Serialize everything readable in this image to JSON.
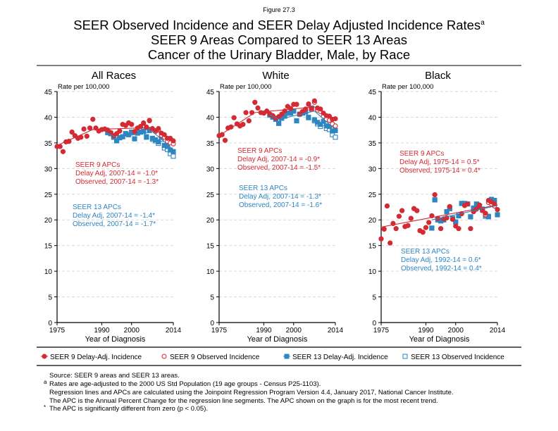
{
  "figure_label": "Figure 27.3",
  "title_line1": "SEER Observed Incidence and SEER Delay Adjusted Incidence Rates",
  "title_sup": "a",
  "title_line2": "SEER 9 Areas Compared to SEER 13 Areas",
  "title_line3": "Cancer of the Urinary Bladder, Male, by Race",
  "colors": {
    "seer9": "#d42a33",
    "seer13": "#2e86c1",
    "grid": "#d9d9d9"
  },
  "legend": [
    {
      "label": "SEER 9 Delay-Adj. Incidence",
      "marker": "filled-circle",
      "color": "#d42a33"
    },
    {
      "label": "SEER 9 Observed Incidence",
      "marker": "open-circle",
      "color": "#d42a33"
    },
    {
      "label": "SEER 13 Delay-Adj. Incidence",
      "marker": "filled-square",
      "color": "#2e86c1"
    },
    {
      "label": "SEER 13 Observed Incidence",
      "marker": "open-square",
      "color": "#2e86c1"
    }
  ],
  "footnotes": {
    "source": "Source: SEER 9 areas and SEER 13 areas.",
    "a_mark": "a",
    "a": "Rates are age-adjusted to the 2000 US Std Population (19 age groups - Census P25-1103).",
    "regression": "Regression lines and APCs are calculated using the Joinpoint Regression Program Version 4.4, January 2017, National Cancer Institute.",
    "apc": "The APC is the Annual Percent Change for the regression line segments. The APC shown on the graph is for the most recent trend.",
    "star_mark": "*",
    "star": "The APC is significantly different from zero (p < 0.05)."
  },
  "chart_data": [
    {
      "type": "scatter",
      "title": "All Races",
      "ylabel": "Rate per 100,000",
      "xlabel": "Year of Diagnosis",
      "xlim": [
        1975,
        2014
      ],
      "ylim": [
        0,
        45
      ],
      "xticks": [
        "1975",
        "1990",
        "2000",
        "2014"
      ],
      "yticks": [
        "0",
        "5",
        "10",
        "15",
        "20",
        "25",
        "30",
        "35",
        "40",
        "45"
      ],
      "grid": true,
      "seer9_years": [
        1975,
        2014
      ],
      "seer13_years": [
        1992,
        2014
      ],
      "seer9_delay": [
        34.3,
        34.3,
        33.3,
        35.2,
        35.3,
        37.1,
        36.4,
        35.9,
        36.1,
        37.7,
        36.3,
        37.9,
        39.6,
        37.9,
        37.3,
        37.6,
        37.7,
        37.5,
        37.0,
        36.4,
        36.8,
        37.3,
        38.6,
        38.4,
        38.9,
        38.6,
        37.2,
        37.9,
        38.2,
        38.9,
        38.1,
        39.4,
        37.8,
        37.4,
        37.8,
        36.9,
        36.6,
        35.9,
        35.9,
        35.4
      ],
      "seer9_observed": [
        34.3,
        34.3,
        33.3,
        35.2,
        35.3,
        37.1,
        36.4,
        35.9,
        36.1,
        37.7,
        36.3,
        37.9,
        39.6,
        37.9,
        37.3,
        37.6,
        37.7,
        37.5,
        37.0,
        36.4,
        36.8,
        37.3,
        38.6,
        38.4,
        38.9,
        38.6,
        37.2,
        37.9,
        38.2,
        38.8,
        38.0,
        39.3,
        37.6,
        37.2,
        37.5,
        36.5,
        36.1,
        35.3,
        35.0,
        34.8
      ],
      "seer13_delay": [
        37.0,
        36.8,
        36.1,
        35.4,
        36.0,
        36.2,
        36.8,
        36.6,
        37.1,
        35.8,
        36.9,
        37.1,
        37.3,
        36.2,
        37.6,
        35.9,
        35.6,
        35.2,
        36.1,
        34.5,
        34.3,
        33.6,
        33.3
      ],
      "seer13_observed": [
        37.0,
        36.8,
        36.1,
        35.4,
        36.0,
        36.2,
        36.8,
        36.6,
        37.1,
        35.8,
        36.9,
        37.1,
        37.2,
        36.1,
        37.4,
        35.7,
        35.4,
        34.9,
        35.7,
        34.0,
        33.7,
        32.9,
        32.4
      ],
      "seer9_trend": [
        [
          1975,
          34.5
        ],
        [
          1987,
          37.6
        ],
        [
          2007,
          38.0
        ],
        [
          2014,
          35.5
        ]
      ],
      "seer13_trend": [
        [
          1992,
          36.9
        ],
        [
          1995,
          36.0
        ],
        [
          2007,
          37.2
        ],
        [
          2014,
          33.7
        ]
      ],
      "seer9_apc": [
        "SEER 9 APCs",
        "Delay Adj, 2007-14 = -1.0*",
        "Observed, 2007-14 = -1.3*"
      ],
      "seer13_apc": [
        "SEER 13 APCs",
        "Delay Adj, 2007-14 = -1.4*",
        "Observed, 2007-14 = -1.7*"
      ]
    },
    {
      "type": "scatter",
      "title": "White",
      "ylabel": "Rate per 100,000",
      "xlabel": "Year of Diagnosis",
      "xlim": [
        1975,
        2014
      ],
      "ylim": [
        0,
        45
      ],
      "xticks": [
        "1975",
        "1990",
        "2000",
        "2014"
      ],
      "yticks": [
        "0",
        "5",
        "10",
        "15",
        "20",
        "25",
        "30",
        "35",
        "40",
        "45"
      ],
      "grid": true,
      "seer9_years": [
        1975,
        2014
      ],
      "seer13_years": [
        1992,
        2014
      ],
      "seer9_delay": [
        36.4,
        36.6,
        35.5,
        37.9,
        38.1,
        39.9,
        38.7,
        38.3,
        38.6,
        40.9,
        39.3,
        40.9,
        42.9,
        41.8,
        40.9,
        40.8,
        41.2,
        40.6,
        40.3,
        39.8,
        40.1,
        40.6,
        41.2,
        42.1,
        41.7,
        42.5,
        42.5,
        40.6,
        41.1,
        41.6,
        42.6,
        41.7,
        43.2,
        41.8,
        41.6,
        40.8,
        40.3,
        40.2,
        39.6,
        39.7
      ],
      "seer9_observed": [
        36.4,
        36.6,
        35.5,
        37.9,
        38.1,
        39.9,
        38.7,
        38.3,
        38.6,
        40.9,
        39.3,
        40.9,
        42.9,
        41.8,
        40.9,
        40.8,
        41.2,
        40.6,
        40.3,
        39.8,
        40.1,
        40.6,
        41.2,
        42.1,
        41.7,
        42.5,
        42.5,
        40.6,
        41.1,
        41.5,
        42.5,
        41.5,
        42.9,
        41.4,
        41.1,
        40.2,
        39.6,
        39.4,
        38.7,
        38.3
      ],
      "seer13_delay": [
        40.4,
        40.0,
        39.6,
        38.8,
        39.8,
        40.2,
        40.8,
        40.8,
        41.2,
        39.3,
        40.6,
        40.8,
        41.1,
        40.0,
        41.8,
        39.5,
        39.0,
        38.6,
        39.2,
        38.3,
        38.2,
        37.3,
        37.4
      ],
      "seer13_observed": [
        40.4,
        40.0,
        39.6,
        38.8,
        39.8,
        40.2,
        40.8,
        40.8,
        41.2,
        39.3,
        40.6,
        40.8,
        41.0,
        39.9,
        41.6,
        39.3,
        38.7,
        38.2,
        38.8,
        37.8,
        37.6,
        36.6,
        36.1
      ],
      "seer9_trend": [
        [
          1975,
          36.4
        ],
        [
          1987,
          40.9
        ],
        [
          2007,
          42.0
        ],
        [
          2014,
          39.5
        ]
      ],
      "seer13_trend": [
        [
          1992,
          40.5
        ],
        [
          1995,
          39.6
        ],
        [
          2007,
          41.2
        ],
        [
          2014,
          37.6
        ]
      ],
      "seer9_apc": [
        "SEER 9 APCs",
        "Delay Adj, 2007-14 = -0.9*",
        "Observed, 2007-14 = -1.5*"
      ],
      "seer13_apc": [
        "SEER 13 APCs",
        "Delay Adj, 2007-14 = -1.3*",
        "Observed, 2007-14 = -1.6*"
      ]
    },
    {
      "type": "scatter",
      "title": "Black",
      "ylabel": "Rate per 100,000",
      "xlabel": "Year of Diagnosis",
      "xlim": [
        1975,
        2014
      ],
      "ylim": [
        0,
        45
      ],
      "xticks": [
        "1975",
        "1990",
        "2000",
        "2014"
      ],
      "yticks": [
        "0",
        "5",
        "10",
        "15",
        "20",
        "25",
        "30",
        "35",
        "40",
        "45"
      ],
      "grid": true,
      "seer9_years": [
        1975,
        2014
      ],
      "seer13_years": [
        1992,
        2014
      ],
      "seer9_delay": [
        16.3,
        18.2,
        22.7,
        15.5,
        19.3,
        18.3,
        20.7,
        21.8,
        18.7,
        18.9,
        20.3,
        22.2,
        21.8,
        17.9,
        17.6,
        18.5,
        19.5,
        20.8,
        24.9,
        20.3,
        18.3,
        20.2,
        20.4,
        22.6,
        20.1,
        18.8,
        18.3,
        21.2,
        22.8,
        23.1,
        18.3,
        21.6,
        22.1,
        22.9,
        21.9,
        21.3,
        23.8,
        23.5,
        23.1,
        22.0
      ],
      "seer9_observed": [
        16.3,
        18.2,
        22.7,
        15.5,
        19.3,
        18.3,
        20.7,
        21.8,
        18.7,
        18.9,
        20.3,
        22.2,
        21.8,
        17.9,
        17.6,
        18.5,
        19.5,
        20.8,
        24.9,
        20.3,
        18.3,
        20.2,
        20.4,
        22.6,
        20.1,
        18.8,
        18.3,
        21.2,
        22.8,
        23.1,
        18.3,
        21.6,
        22.1,
        22.8,
        21.8,
        21.0,
        23.4,
        23.1,
        22.7,
        22.0
      ],
      "seer13_delay": [
        18.4,
        23.9,
        20.0,
        19.8,
        20.0,
        21.6,
        22.2,
        20.3,
        19.6,
        20.8,
        23.2,
        23.2,
        23.1,
        20.6,
        22.3,
        23.1,
        22.7,
        22.1,
        20.9,
        20.7,
        24.0,
        23.8,
        21.0
      ],
      "seer13_observed": [
        18.4,
        23.9,
        20.0,
        19.8,
        20.0,
        21.6,
        22.2,
        20.3,
        19.6,
        20.8,
        23.2,
        23.2,
        23.1,
        20.6,
        22.3,
        23.0,
        22.6,
        21.9,
        20.7,
        20.6,
        23.6,
        23.4,
        21.0
      ],
      "seer9_trend": [
        [
          1975,
          18.6
        ],
        [
          2014,
          22.9
        ]
      ],
      "seer13_trend": [
        [
          1992,
          20.0
        ],
        [
          2014,
          22.8
        ]
      ],
      "seer9_apc": [
        "SEER 9 APCs",
        "Delay Adj, 1975-14 = 0.5*",
        "Observed, 1975-14 = 0.4*"
      ],
      "seer13_apc": [
        "SEER 13 APCs",
        "Delay Adj, 1992-14 = 0.6*",
        "Observed, 1992-14 = 0.4*"
      ]
    }
  ]
}
